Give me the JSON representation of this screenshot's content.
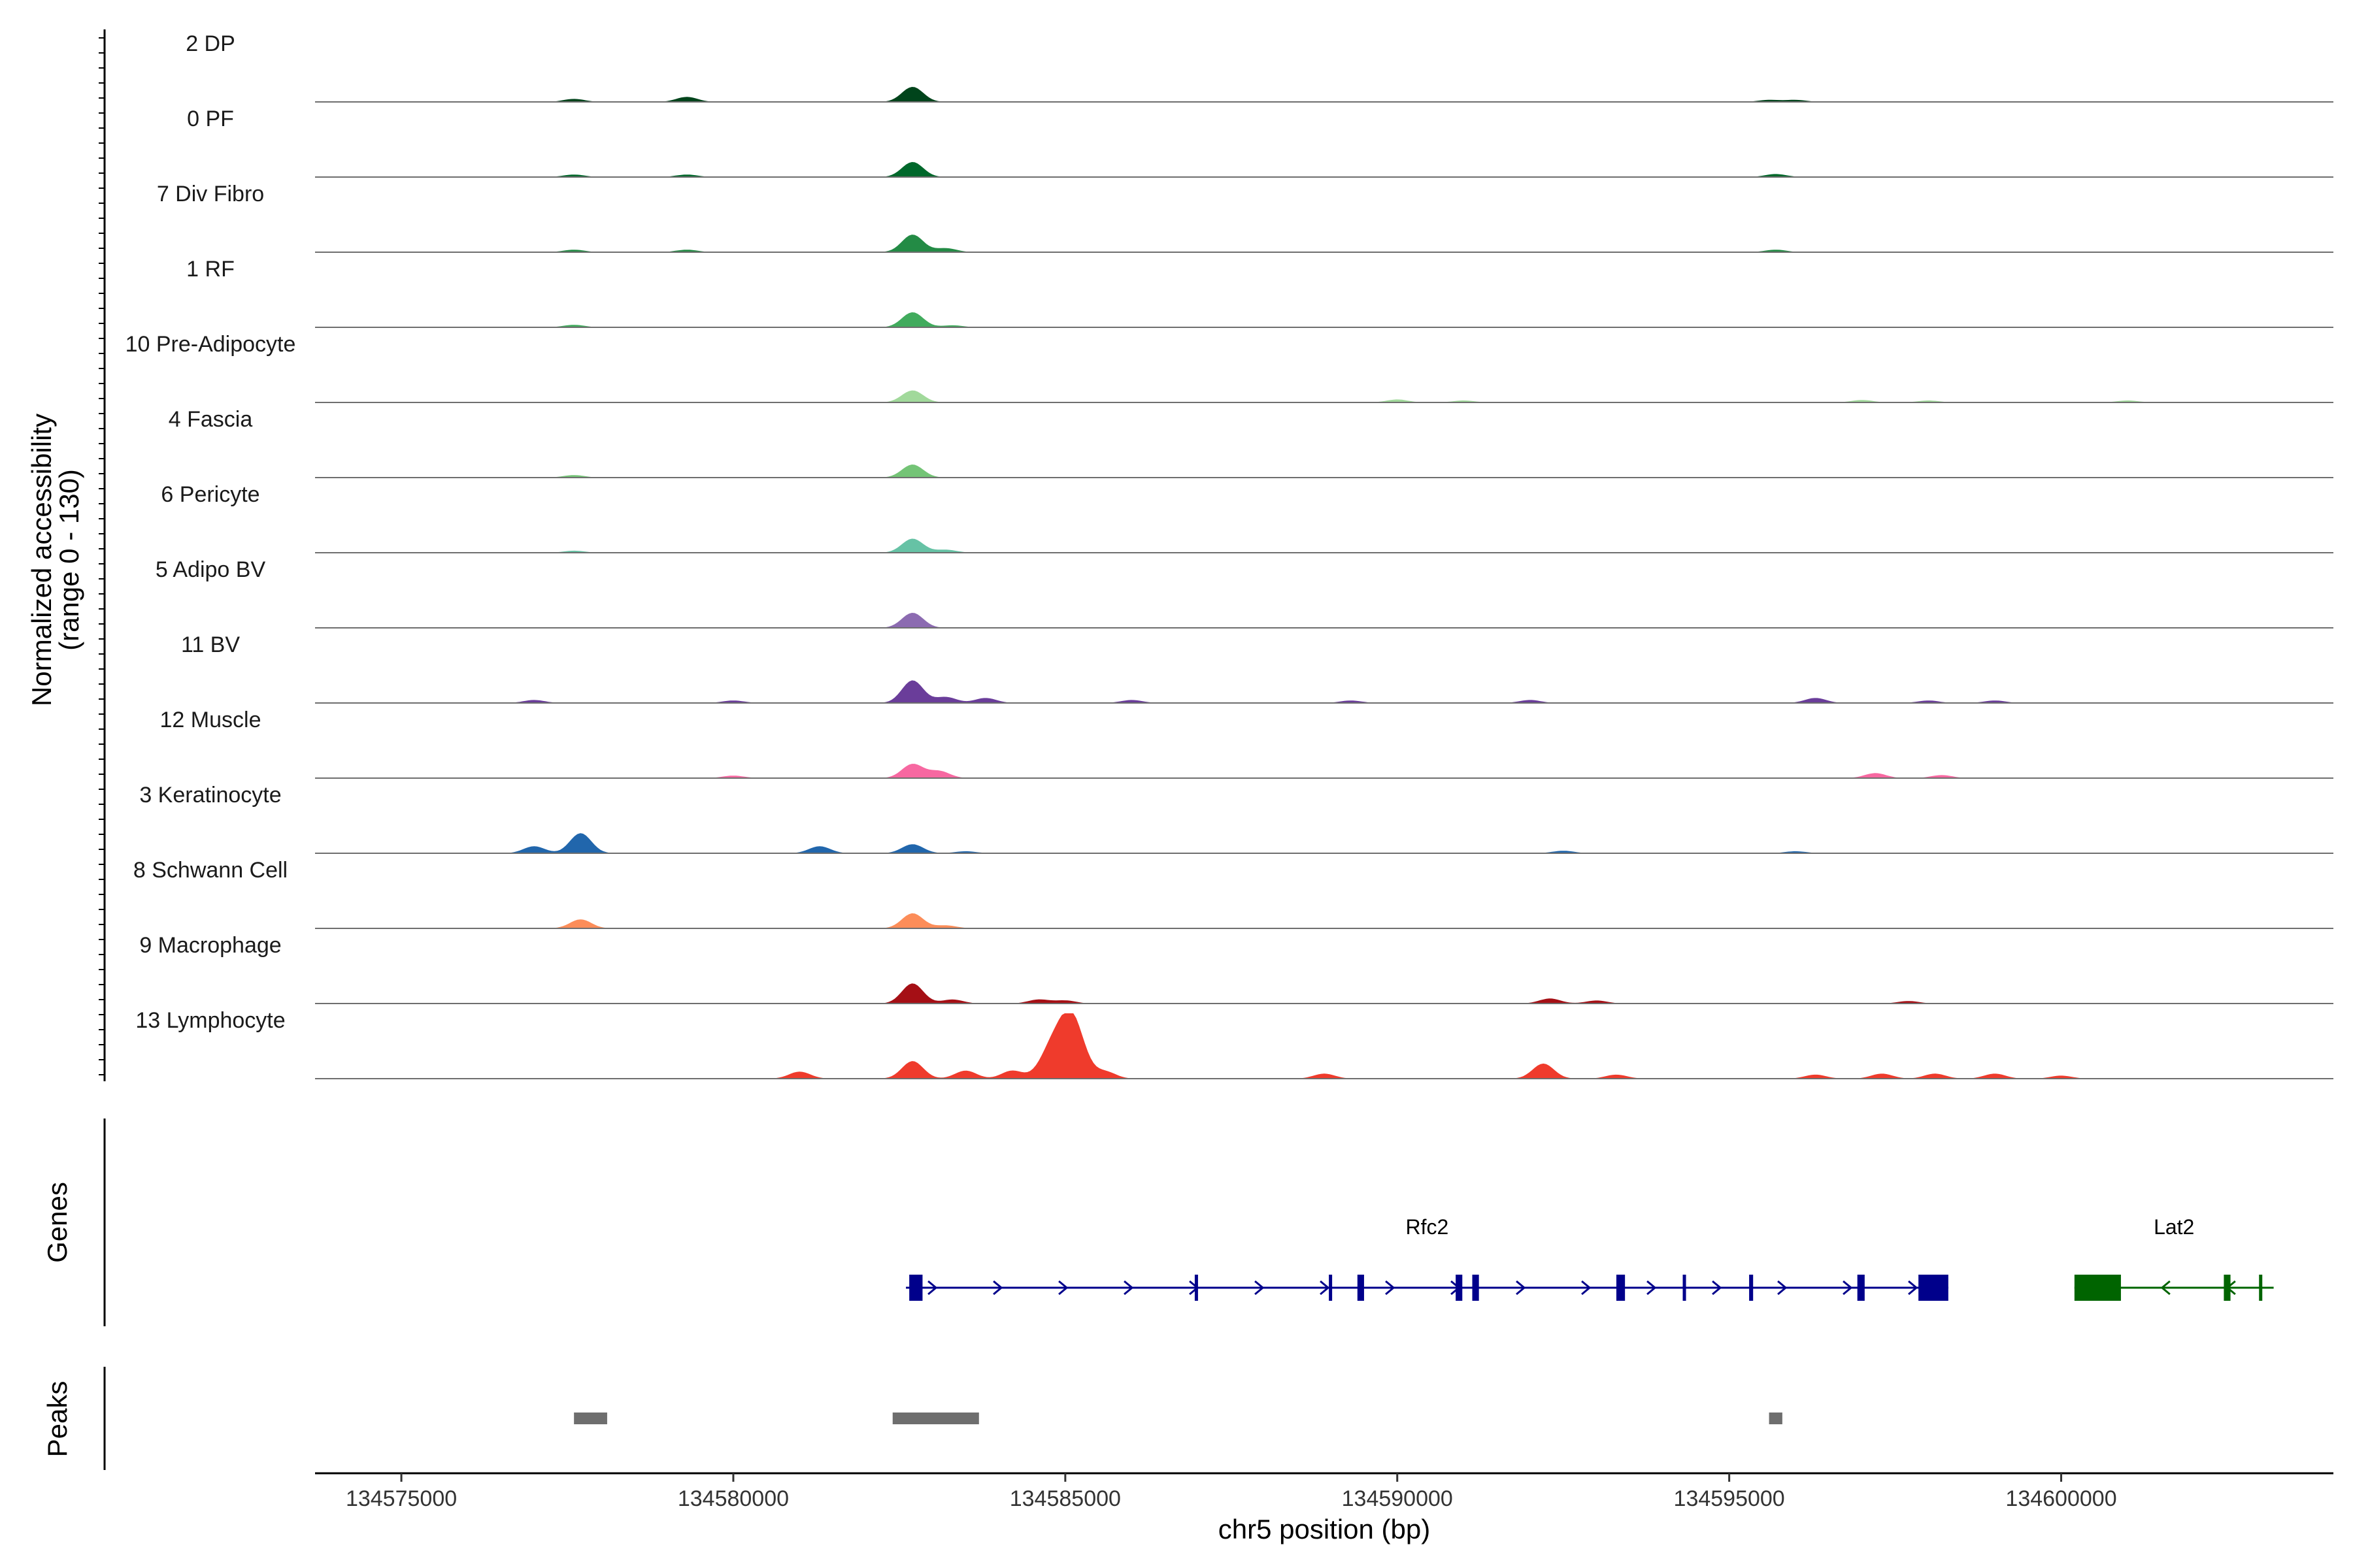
{
  "chart_data": {
    "type": "area",
    "xlabel": "chr5 position (bp)",
    "ylabel": "Normalized accessibility",
    "ylabel_sub": "(range 0 - 130)",
    "yrange": [
      0,
      130
    ],
    "xlim": [
      134573700,
      134604100
    ],
    "xticks": [
      134575000,
      134580000,
      134585000,
      134590000,
      134595000,
      134600000
    ],
    "xtick_labels": [
      "134575000",
      "134580000",
      "134585000",
      "134590000",
      "134595000",
      "134600000"
    ],
    "tracks": [
      {
        "name": "2 DP",
        "color": "#00441b",
        "peaks": [
          [
            134577600,
            6
          ],
          [
            134579300,
            10
          ],
          [
            134582700,
            30
          ],
          [
            134595600,
            4
          ],
          [
            134596000,
            4
          ]
        ]
      },
      {
        "name": "0 PF",
        "color": "#00682b",
        "peaks": [
          [
            134577600,
            5
          ],
          [
            134579300,
            5
          ],
          [
            134582700,
            30
          ],
          [
            134595700,
            6
          ]
        ]
      },
      {
        "name": "7 Div Fibro",
        "color": "#238b45",
        "peaks": [
          [
            134577600,
            5
          ],
          [
            134579300,
            5
          ],
          [
            134582700,
            35
          ],
          [
            134583200,
            8
          ],
          [
            134595700,
            5
          ]
        ]
      },
      {
        "name": "1 RF",
        "color": "#41ab5d",
        "peaks": [
          [
            134577600,
            5
          ],
          [
            134582700,
            30
          ],
          [
            134583300,
            4
          ]
        ]
      },
      {
        "name": "10 Pre-Adipocyte",
        "color": "#a1d99b",
        "peaks": [
          [
            134582700,
            24
          ],
          [
            134590000,
            6
          ],
          [
            134591000,
            4
          ],
          [
            134597000,
            5
          ],
          [
            134598000,
            4
          ],
          [
            134601000,
            4
          ]
        ]
      },
      {
        "name": "4 Fascia",
        "color": "#74c476",
        "peaks": [
          [
            134577600,
            5
          ],
          [
            134582700,
            26
          ]
        ]
      },
      {
        "name": "6 Pericyte",
        "color": "#66c2a5",
        "peaks": [
          [
            134577600,
            4
          ],
          [
            134582700,
            28
          ],
          [
            134583200,
            6
          ]
        ]
      },
      {
        "name": "5 Adipo BV",
        "color": "#8c6bb1",
        "peaks": [
          [
            134582700,
            30
          ]
        ]
      },
      {
        "name": "11 BV",
        "color": "#6a3d9a",
        "peaks": [
          [
            134577000,
            6
          ],
          [
            134580000,
            5
          ],
          [
            134582700,
            45
          ],
          [
            134583200,
            12
          ],
          [
            134583800,
            10
          ],
          [
            134586000,
            6
          ],
          [
            134589300,
            5
          ],
          [
            134592000,
            6
          ],
          [
            134596300,
            10
          ],
          [
            134598000,
            5
          ],
          [
            134599000,
            5
          ]
        ]
      },
      {
        "name": "12 Muscle",
        "color": "#f768a1",
        "peaks": [
          [
            134582700,
            28
          ],
          [
            134583100,
            14
          ],
          [
            134580000,
            5
          ],
          [
            134597200,
            10
          ],
          [
            134598200,
            6
          ]
        ]
      },
      {
        "name": "3 Keratinocyte",
        "color": "#2166ac",
        "peaks": [
          [
            134577000,
            14
          ],
          [
            134577700,
            40
          ],
          [
            134581300,
            14
          ],
          [
            134582700,
            18
          ],
          [
            134583500,
            4
          ],
          [
            134592500,
            5
          ],
          [
            134596000,
            4
          ]
        ]
      },
      {
        "name": "8 Schwann Cell",
        "color": "#fc8d59",
        "peaks": [
          [
            134577700,
            18
          ],
          [
            134582700,
            30
          ],
          [
            134583200,
            6
          ]
        ]
      },
      {
        "name": "9 Macrophage",
        "color": "#a50f15",
        "peaks": [
          [
            134582700,
            40
          ],
          [
            134583300,
            8
          ],
          [
            134584600,
            8
          ],
          [
            134585000,
            6
          ],
          [
            134592300,
            10
          ],
          [
            134593000,
            6
          ],
          [
            134597700,
            5
          ]
        ]
      },
      {
        "name": "13 Lymphocyte",
        "color": "#ef3b2c",
        "peaks": [
          [
            134581000,
            14
          ],
          [
            134582700,
            35
          ],
          [
            134583500,
            16
          ],
          [
            134584200,
            16
          ],
          [
            134584800,
            60
          ],
          [
            134585100,
            120
          ],
          [
            134585600,
            14
          ],
          [
            134588900,
            10
          ],
          [
            134592200,
            30
          ],
          [
            134593300,
            8
          ],
          [
            134596300,
            8
          ],
          [
            134597300,
            10
          ],
          [
            134598100,
            10
          ],
          [
            134599000,
            10
          ],
          [
            134600000,
            6
          ]
        ]
      }
    ],
    "genes": [
      {
        "name": "Rfc2",
        "color": "#00008b",
        "start": 134582600,
        "end": 134598300,
        "strand": "+",
        "exons": [
          [
            134582650,
            134582850
          ],
          [
            134586950,
            134586990
          ],
          [
            134588970,
            134589000
          ],
          [
            134589400,
            134589500
          ],
          [
            134590880,
            134590980
          ],
          [
            134591130,
            134591230
          ],
          [
            134593300,
            134593430
          ],
          [
            134594300,
            134594340
          ],
          [
            134595300,
            134595360
          ],
          [
            134596930,
            134597040
          ],
          [
            134597850,
            134598300
          ]
        ],
        "thick": [
          [
            134597850,
            134598300
          ]
        ]
      },
      {
        "name": "Lat2",
        "color": "#006400",
        "start": 134600200,
        "end": 134603200,
        "strand": "-",
        "exons": [
          [
            134600200,
            134600900
          ],
          [
            134602450,
            134602550
          ],
          [
            134602980,
            134603020
          ]
        ],
        "thick": [
          [
            134600200,
            134600900
          ]
        ]
      }
    ],
    "peak_regions": [
      [
        134577600,
        134578100
      ],
      [
        134582400,
        134583700
      ],
      [
        134595600,
        134595800
      ]
    ],
    "panel_titles": {
      "genes": "Genes",
      "peaks": "Peaks"
    }
  }
}
